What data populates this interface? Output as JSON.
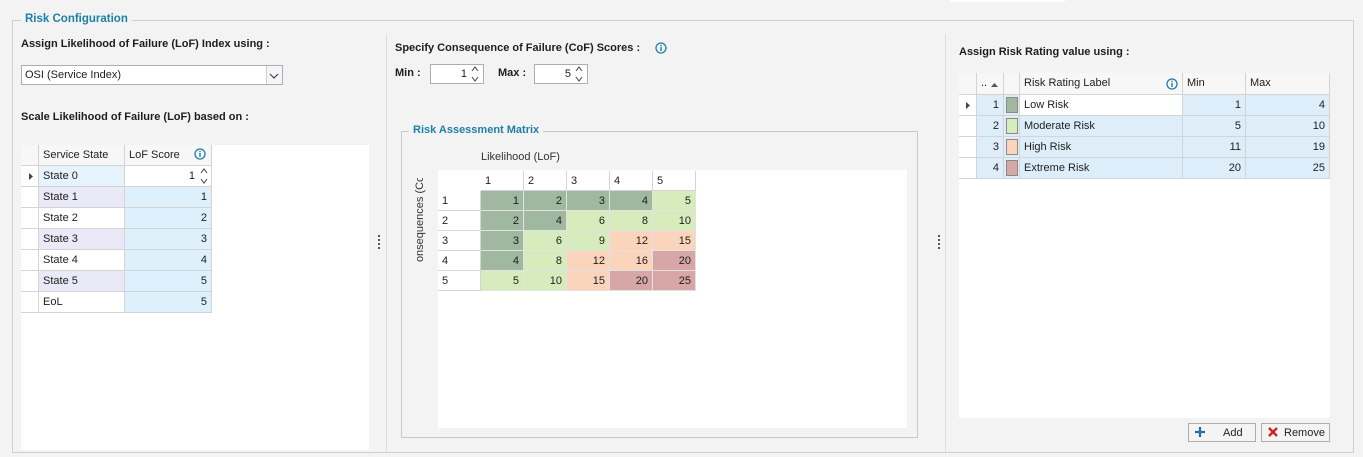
{
  "group_title": "Risk Configuration",
  "lof": {
    "index_label": "Assign Likelihood of Failure (LoF) Index using :",
    "index_value": "OSI (Service Index)",
    "scale_label": "Scale Likelihood of Failure (LoF) based on :",
    "table": {
      "columns": [
        "Service State",
        "LoF Score"
      ],
      "rows": [
        [
          "State 0",
          1
        ],
        [
          "State 1",
          1
        ],
        [
          "State 2",
          2
        ],
        [
          "State 3",
          3
        ],
        [
          "State 4",
          4
        ],
        [
          "State 5",
          5
        ],
        [
          "EoL",
          5
        ]
      ]
    }
  },
  "cof": {
    "label": "Specify Consequence of Failure (CoF) Scores :",
    "min_label": "Min :",
    "min": 1,
    "max_label": "Max :",
    "max": 5
  },
  "matrix": {
    "title": "Risk Assessment Matrix",
    "x_label": "Likelihood (LoF)",
    "y_label": "Consequences (CoF)",
    "columns": [
      1,
      2,
      3,
      4,
      5
    ],
    "row_labels": [
      1,
      2,
      3,
      4,
      5
    ],
    "cells": [
      [
        1,
        2,
        3,
        4,
        5
      ],
      [
        2,
        4,
        6,
        8,
        10
      ],
      [
        3,
        6,
        9,
        12,
        15
      ],
      [
        4,
        8,
        12,
        16,
        20
      ],
      [
        5,
        10,
        15,
        20,
        25
      ]
    ]
  },
  "rating": {
    "label": "Assign Risk Rating value using :",
    "columns": [
      "..",
      "Risk Rating Label",
      "Min",
      "Max"
    ],
    "rows": [
      {
        "index": 1,
        "color": "#9fb89f",
        "label": "Low Risk",
        "min": 1,
        "max": 4
      },
      {
        "index": 2,
        "color": "#d6ecbd",
        "label": "Moderate Risk",
        "min": 5,
        "max": 10
      },
      {
        "index": 3,
        "color": "#fbd5bb",
        "label": "High Risk",
        "min": 11,
        "max": 19
      },
      {
        "index": 4,
        "color": "#d7a6a6",
        "label": "Extreme Risk",
        "min": 20,
        "max": 25
      }
    ]
  },
  "buttons": [
    "Add",
    "Remove"
  ]
}
